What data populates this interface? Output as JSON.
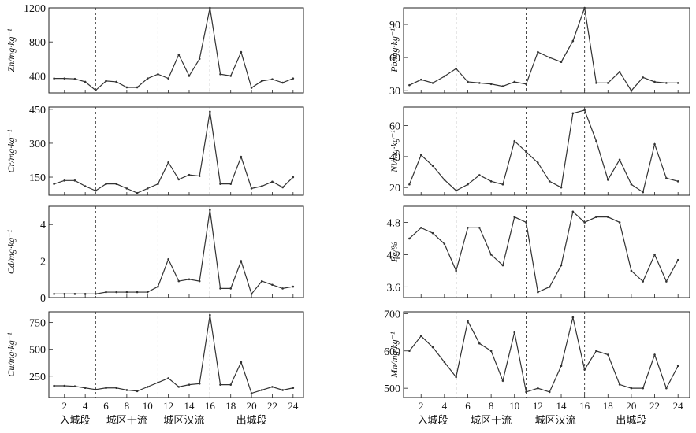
{
  "layout_note_free": true,
  "segments": [
    "入城段",
    "城区干流",
    "城区汉流",
    "出城段"
  ],
  "chart_data": [
    {
      "type": "line",
      "id": "zn",
      "ylabel": "Zn/mg·kg⁻¹",
      "ylim": [
        200,
        1200
      ],
      "yticks": [
        400,
        800,
        1200
      ],
      "x": [
        1,
        2,
        3,
        4,
        5,
        6,
        7,
        8,
        9,
        10,
        11,
        12,
        13,
        14,
        15,
        16,
        17,
        18,
        19,
        20,
        21,
        22,
        23,
        24
      ],
      "xticks": [
        2,
        4,
        6,
        8,
        10,
        12,
        14,
        16,
        18,
        20,
        22,
        24
      ],
      "dividers": [
        5,
        11,
        16
      ],
      "values": [
        370,
        370,
        365,
        330,
        230,
        340,
        330,
        265,
        265,
        370,
        420,
        370,
        650,
        400,
        600,
        1200,
        420,
        400,
        680,
        260,
        340,
        360,
        320,
        370
      ]
    },
    {
      "type": "line",
      "id": "pb",
      "ylabel": "Pb/mg·kg⁻¹",
      "ylim": [
        28,
        105
      ],
      "yticks": [
        30,
        60,
        90
      ],
      "x": [
        1,
        2,
        3,
        4,
        5,
        6,
        7,
        8,
        9,
        10,
        11,
        12,
        13,
        14,
        15,
        16,
        17,
        18,
        19,
        20,
        21,
        22,
        23,
        24
      ],
      "xticks": [
        2,
        4,
        6,
        8,
        10,
        12,
        14,
        16,
        18,
        20,
        22,
        24
      ],
      "dividers": [
        5,
        11,
        16
      ],
      "values": [
        35,
        40,
        37,
        43,
        50,
        38,
        37,
        36,
        34,
        38,
        36,
        65,
        60,
        56,
        75,
        105,
        37,
        37,
        47,
        30,
        42,
        38,
        37,
        37
      ]
    },
    {
      "type": "line",
      "id": "cr",
      "ylabel": "Cr/mg·kg⁻¹",
      "ylim": [
        70,
        460
      ],
      "yticks": [
        150,
        300,
        450
      ],
      "x": [
        1,
        2,
        3,
        4,
        5,
        6,
        7,
        8,
        9,
        10,
        11,
        12,
        13,
        14,
        15,
        16,
        17,
        18,
        19,
        20,
        21,
        22,
        23,
        24
      ],
      "xticks": [
        2,
        4,
        6,
        8,
        10,
        12,
        14,
        16,
        18,
        20,
        22,
        24
      ],
      "dividers": [
        5,
        11,
        16
      ],
      "values": [
        120,
        135,
        135,
        110,
        90,
        120,
        120,
        100,
        80,
        100,
        120,
        215,
        140,
        160,
        155,
        440,
        120,
        120,
        240,
        100,
        110,
        130,
        105,
        150
      ]
    },
    {
      "type": "line",
      "id": "ni",
      "ylabel": "Ni/mg·kg⁻¹",
      "ylim": [
        15,
        72
      ],
      "yticks": [
        20,
        40,
        60
      ],
      "x": [
        1,
        2,
        3,
        4,
        5,
        6,
        7,
        8,
        9,
        10,
        11,
        12,
        13,
        14,
        15,
        16,
        17,
        18,
        19,
        20,
        21,
        22,
        23,
        24
      ],
      "xticks": [
        2,
        4,
        6,
        8,
        10,
        12,
        14,
        16,
        18,
        20,
        22,
        24
      ],
      "dividers": [
        5,
        11,
        16
      ],
      "values": [
        22,
        41,
        34,
        25,
        18,
        22,
        28,
        24,
        22,
        50,
        43,
        36,
        24,
        20,
        68,
        70,
        50,
        25,
        38,
        22,
        17,
        48,
        26,
        24
      ]
    },
    {
      "type": "line",
      "id": "cd",
      "ylabel": "Cd/mg·kg⁻¹",
      "ylim": [
        0,
        5
      ],
      "yticks": [
        0,
        2,
        4
      ],
      "x": [
        1,
        2,
        3,
        4,
        5,
        6,
        7,
        8,
        9,
        10,
        11,
        12,
        13,
        14,
        15,
        16,
        17,
        18,
        19,
        20,
        21,
        22,
        23,
        24
      ],
      "xticks": [
        2,
        4,
        6,
        8,
        10,
        12,
        14,
        16,
        18,
        20,
        22,
        24
      ],
      "dividers": [
        5,
        11,
        16
      ],
      "values": [
        0.2,
        0.2,
        0.2,
        0.2,
        0.2,
        0.3,
        0.3,
        0.3,
        0.3,
        0.3,
        0.6,
        2.1,
        0.9,
        1.0,
        0.9,
        4.8,
        0.5,
        0.5,
        2.0,
        0.2,
        0.9,
        0.7,
        0.5,
        0.6
      ]
    },
    {
      "type": "line",
      "id": "fe",
      "ylabel": "Fe/%",
      "ylim": [
        3.4,
        5.1
      ],
      "yticks": [
        3.6,
        4.2,
        4.8
      ],
      "x": [
        1,
        2,
        3,
        4,
        5,
        6,
        7,
        8,
        9,
        10,
        11,
        12,
        13,
        14,
        15,
        16,
        17,
        18,
        19,
        20,
        21,
        22,
        23,
        24
      ],
      "xticks": [
        2,
        4,
        6,
        8,
        10,
        12,
        14,
        16,
        18,
        20,
        22,
        24
      ],
      "dividers": [
        5,
        11,
        16
      ],
      "values": [
        4.5,
        4.7,
        4.6,
        4.4,
        3.9,
        4.7,
        4.7,
        4.2,
        4.0,
        4.9,
        4.8,
        3.5,
        3.6,
        4.0,
        5.0,
        4.8,
        4.9,
        4.9,
        4.8,
        3.9,
        3.7,
        4.2,
        3.7,
        4.1
      ]
    },
    {
      "type": "line",
      "id": "cu",
      "ylabel": "Cu/mg·kg⁻¹",
      "ylim": [
        50,
        850
      ],
      "yticks": [
        250,
        500,
        750
      ],
      "x": [
        1,
        2,
        3,
        4,
        5,
        6,
        7,
        8,
        9,
        10,
        11,
        12,
        13,
        14,
        15,
        16,
        17,
        18,
        19,
        20,
        21,
        22,
        23,
        24
      ],
      "xticks": [
        2,
        4,
        6,
        8,
        10,
        12,
        14,
        16,
        18,
        20,
        22,
        24
      ],
      "dividers": [
        5,
        11,
        16
      ],
      "values": [
        160,
        160,
        155,
        140,
        125,
        140,
        140,
        120,
        110,
        150,
        190,
        230,
        150,
        170,
        180,
        820,
        170,
        170,
        380,
        90,
        120,
        150,
        120,
        140
      ]
    },
    {
      "type": "line",
      "id": "mn",
      "ylabel": "Mn/mg·kg⁻¹",
      "ylim": [
        475,
        705
      ],
      "yticks": [
        500,
        600,
        700
      ],
      "x": [
        1,
        2,
        3,
        4,
        5,
        6,
        7,
        8,
        9,
        10,
        11,
        12,
        13,
        14,
        15,
        16,
        17,
        18,
        19,
        20,
        21,
        22,
        23,
        24
      ],
      "xticks": [
        2,
        4,
        6,
        8,
        10,
        12,
        14,
        16,
        18,
        20,
        22,
        24
      ],
      "dividers": [
        5,
        11,
        16
      ],
      "values": [
        600,
        640,
        610,
        570,
        530,
        680,
        620,
        600,
        520,
        650,
        490,
        500,
        490,
        560,
        690,
        550,
        600,
        590,
        510,
        500,
        500,
        590,
        500,
        560
      ]
    }
  ]
}
